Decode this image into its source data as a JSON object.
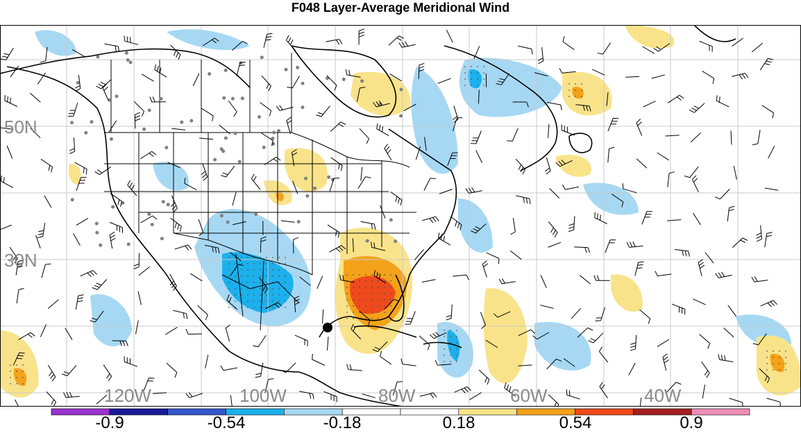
{
  "title": "F048 Layer-Average Meridional Wind",
  "lat_labels": [
    "50N",
    "30N"
  ],
  "lon_labels": [
    "120W",
    "100W",
    "80W",
    "60W",
    "40W"
  ],
  "colorbar": {
    "colors": [
      "#9933cc",
      "#1a1a99",
      "#3355cc",
      "#1cb0ec",
      "#a6d8f4",
      "#ffffff",
      "#ffffff",
      "#f9e38a",
      "#f4a21a",
      "#ef4a1c",
      "#a52020",
      "#ee8fb7"
    ],
    "labels": [
      "-0.9",
      "-0.54",
      "-0.18",
      "0.18",
      "0.54",
      "0.9"
    ]
  },
  "colors": {
    "frame": "#000000",
    "grid": "#c8c8c8",
    "coast": "#000000",
    "station": "#808080"
  }
}
